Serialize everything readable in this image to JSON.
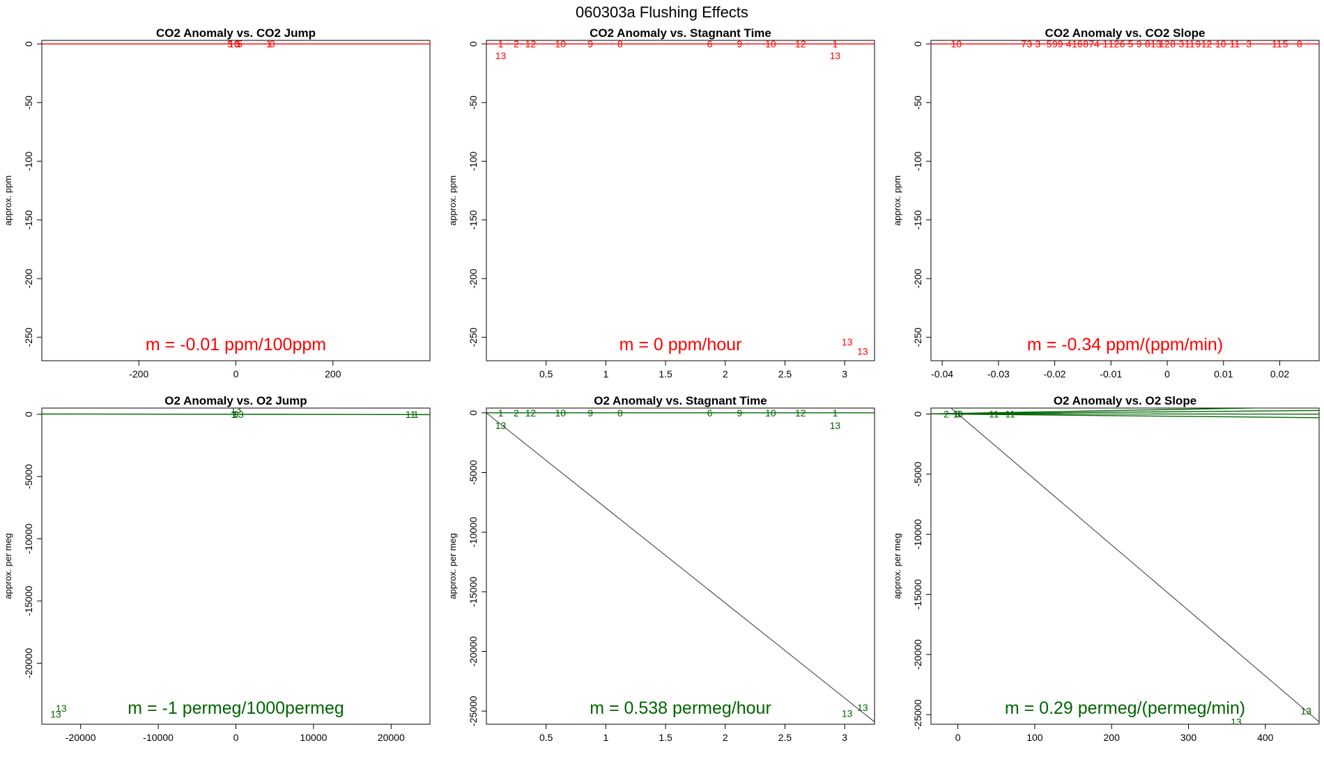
{
  "page_title": "060303a   Flushing Effects",
  "colors": {
    "co2": "#ff0000",
    "o2": "#006400",
    "axis": "#000000",
    "line": "#333333"
  },
  "chart_data": [
    {
      "type": "scatter",
      "title": "CO2 Anomaly vs. CO2 Jump",
      "ylabel": "approx. ppm",
      "xlim": [
        -400,
        400
      ],
      "ylim": [
        -270,
        3
      ],
      "xticks": [
        -200,
        0,
        200
      ],
      "yticks": [
        0,
        -50,
        -100,
        -150,
        -200,
        -250
      ],
      "color_key": "co2",
      "slope_label": "m = -0.01 ppm/100ppm",
      "points": [
        {
          "x": -12,
          "y": 0,
          "label": "5"
        },
        {
          "x": -4,
          "y": 0,
          "label": "10"
        },
        {
          "x": 4,
          "y": 0,
          "label": "5"
        },
        {
          "x": 8,
          "y": 0,
          "label": "5"
        },
        {
          "x": 68,
          "y": 0,
          "label": "1"
        },
        {
          "x": 75,
          "y": 0,
          "label": "0"
        }
      ],
      "lines": [
        {
          "x1": -400,
          "y1": 0,
          "x2": 400,
          "y2": 0,
          "style": "series"
        }
      ]
    },
    {
      "type": "scatter",
      "title": "CO2 Anomaly vs. Stagnant Time",
      "ylabel": "approx. ppm",
      "xlim": [
        0,
        3.25
      ],
      "ylim": [
        -270,
        3
      ],
      "xticks": [
        0.5,
        1.0,
        1.5,
        2.0,
        2.5,
        3.0
      ],
      "yticks": [
        0,
        -50,
        -100,
        -150,
        -200,
        -250
      ],
      "color_key": "co2",
      "slope_label": "m = 0 ppm/hour",
      "points": [
        {
          "x": 0.12,
          "y": 0,
          "label": "1"
        },
        {
          "x": 0.12,
          "y": -10,
          "label": "13"
        },
        {
          "x": 0.25,
          "y": 0,
          "label": "2"
        },
        {
          "x": 0.37,
          "y": 0,
          "label": "12"
        },
        {
          "x": 0.62,
          "y": 0,
          "label": "10"
        },
        {
          "x": 0.87,
          "y": 0,
          "label": "9"
        },
        {
          "x": 1.12,
          "y": 0,
          "label": "8"
        },
        {
          "x": 1.87,
          "y": 0,
          "label": "6"
        },
        {
          "x": 2.12,
          "y": 0,
          "label": "9"
        },
        {
          "x": 2.38,
          "y": 0,
          "label": "10"
        },
        {
          "x": 2.63,
          "y": 0,
          "label": "12"
        },
        {
          "x": 2.92,
          "y": 0,
          "label": "1"
        },
        {
          "x": 2.92,
          "y": -10,
          "label": "13"
        },
        {
          "x": 3.02,
          "y": -254,
          "label": "13"
        },
        {
          "x": 3.15,
          "y": -262,
          "label": "13"
        }
      ],
      "lines": [
        {
          "x1": 0,
          "y1": 0,
          "x2": 3.25,
          "y2": 0,
          "style": "series"
        }
      ]
    },
    {
      "type": "scatter",
      "title": "CO2 Anomaly vs. CO2 Slope",
      "ylabel": "approx. ppm",
      "xlim": [
        -0.042,
        0.027
      ],
      "ylim": [
        -270,
        3
      ],
      "xticks": [
        -0.04,
        -0.03,
        -0.02,
        -0.01,
        0.0,
        0.01,
        0.02
      ],
      "yticks": [
        0,
        -50,
        -100,
        -150,
        -200,
        -250
      ],
      "color_key": "co2",
      "slope_label": "m = -0.34 ppm/(ppm/min)",
      "points": [
        {
          "x": -0.0375,
          "y": 0,
          "label": "10"
        },
        {
          "x": -0.0255,
          "y": 0,
          "label": "7"
        },
        {
          "x": -0.0245,
          "y": 0,
          "label": "3"
        },
        {
          "x": -0.023,
          "y": 0,
          "label": "3"
        },
        {
          "x": -0.021,
          "y": 0,
          "label": "5"
        },
        {
          "x": -0.0195,
          "y": 0,
          "label": "99"
        },
        {
          "x": -0.0175,
          "y": 0,
          "label": "4"
        },
        {
          "x": -0.016,
          "y": 0,
          "label": "16"
        },
        {
          "x": -0.0145,
          "y": 0,
          "label": "8"
        },
        {
          "x": -0.013,
          "y": 0,
          "label": "74"
        },
        {
          "x": -0.011,
          "y": 0,
          "label": "1"
        },
        {
          "x": -0.0095,
          "y": 0,
          "label": "12"
        },
        {
          "x": -0.008,
          "y": 0,
          "label": "6"
        },
        {
          "x": -0.0065,
          "y": 0,
          "label": "5"
        },
        {
          "x": -0.005,
          "y": 0,
          "label": "9"
        },
        {
          "x": -0.0035,
          "y": 0,
          "label": "8"
        },
        {
          "x": -0.002,
          "y": 0,
          "label": "13"
        },
        {
          "x": -0.0005,
          "y": 0,
          "label": "12"
        },
        {
          "x": 0.001,
          "y": 0,
          "label": "8"
        },
        {
          "x": 0.0025,
          "y": 0,
          "label": "3"
        },
        {
          "x": 0.004,
          "y": 0,
          "label": "11"
        },
        {
          "x": 0.0055,
          "y": 0,
          "label": "9"
        },
        {
          "x": 0.007,
          "y": 0,
          "label": "12"
        },
        {
          "x": 0.0095,
          "y": 0,
          "label": "10"
        },
        {
          "x": 0.012,
          "y": 0,
          "label": "11"
        },
        {
          "x": 0.0145,
          "y": 0,
          "label": "3"
        },
        {
          "x": 0.0195,
          "y": 0,
          "label": "11"
        },
        {
          "x": 0.021,
          "y": 0,
          "label": "5"
        },
        {
          "x": 0.0235,
          "y": 0,
          "label": "8"
        }
      ],
      "lines": [
        {
          "x1": -0.042,
          "y1": 0,
          "x2": 0.027,
          "y2": 0,
          "style": "series"
        }
      ]
    },
    {
      "type": "scatter",
      "title": "O2 Anomaly vs. O2 Jump",
      "ylabel": "approx. per meg",
      "xlim": [
        -25000,
        25000
      ],
      "ylim": [
        -24900,
        500
      ],
      "xticks": [
        -20000,
        -10000,
        0,
        10000,
        20000
      ],
      "yticks": [
        0,
        -5000,
        -10000,
        -15000,
        -20000
      ],
      "color_key": "o2",
      "slope_label": "m = -1 permeg/1000permeg",
      "points": [
        {
          "x": -300,
          "y": 0,
          "label": "1"
        },
        {
          "x": 0,
          "y": 0,
          "label": "0"
        },
        {
          "x": 300,
          "y": 0,
          "label": "13"
        },
        {
          "x": 0,
          "y": 400,
          "label": "13"
        },
        {
          "x": 22500,
          "y": 0,
          "label": "11"
        },
        {
          "x": 23200,
          "y": 0,
          "label": "1"
        },
        {
          "x": -22500,
          "y": -23600,
          "label": "13"
        },
        {
          "x": -23200,
          "y": -24100,
          "label": "13"
        }
      ],
      "lines": [
        {
          "x1": -25000,
          "y1": 25,
          "x2": 25000,
          "y2": -25,
          "style": "series"
        }
      ]
    },
    {
      "type": "scatter",
      "title": "O2 Anomaly vs. Stagnant Time",
      "ylabel": "approx. per meg",
      "xlim": [
        0,
        3.25
      ],
      "ylim": [
        -26100,
        400
      ],
      "xticks": [
        0.5,
        1.0,
        1.5,
        2.0,
        2.5,
        3.0
      ],
      "yticks": [
        0,
        -5000,
        -10000,
        -15000,
        -20000,
        -25000
      ],
      "color_key": "o2",
      "slope_label": "m = 0.538 permeg/hour",
      "points": [
        {
          "x": 0.12,
          "y": 0,
          "label": "1"
        },
        {
          "x": 0.12,
          "y": -1050,
          "label": "13"
        },
        {
          "x": 0.25,
          "y": 0,
          "label": "2"
        },
        {
          "x": 0.37,
          "y": 0,
          "label": "12"
        },
        {
          "x": 0.62,
          "y": 0,
          "label": "10"
        },
        {
          "x": 0.87,
          "y": 0,
          "label": "9"
        },
        {
          "x": 1.12,
          "y": 0,
          "label": "8"
        },
        {
          "x": 1.87,
          "y": 0,
          "label": "6"
        },
        {
          "x": 2.12,
          "y": 0,
          "label": "9"
        },
        {
          "x": 2.38,
          "y": 0,
          "label": "10"
        },
        {
          "x": 2.63,
          "y": 0,
          "label": "12"
        },
        {
          "x": 2.92,
          "y": 0,
          "label": "1"
        },
        {
          "x": 2.92,
          "y": -1050,
          "label": "13"
        },
        {
          "x": 3.02,
          "y": -25200,
          "label": "13"
        },
        {
          "x": 3.15,
          "y": -24700,
          "label": "13"
        }
      ],
      "lines": [
        {
          "x1": 0,
          "y1": 0,
          "x2": 3.25,
          "y2": 0,
          "style": "series"
        },
        {
          "x1": 0,
          "y1": 0,
          "x2": 3.25,
          "y2": -25900,
          "style": "thin"
        }
      ]
    },
    {
      "type": "scatter",
      "title": "O2 Anomaly vs. O2 Slope",
      "ylabel": "approx. per meg",
      "xlim": [
        -35,
        470
      ],
      "ylim": [
        -25800,
        500
      ],
      "xticks": [
        0,
        100,
        200,
        300,
        400
      ],
      "yticks": [
        0,
        -5000,
        -10000,
        -15000,
        -20000,
        -25000
      ],
      "color_key": "o2",
      "slope_label": "m = 0.29 permeg/(permeg/min)",
      "points": [
        {
          "x": -15,
          "y": 0,
          "label": "2"
        },
        {
          "x": -3,
          "y": 0,
          "label": "1"
        },
        {
          "x": 0,
          "y": 0,
          "label": "0"
        },
        {
          "x": 3,
          "y": 0,
          "label": "0"
        },
        {
          "x": 47,
          "y": 0,
          "label": "11"
        },
        {
          "x": 68,
          "y": 0,
          "label": "11"
        },
        {
          "x": 453,
          "y": -24700,
          "label": "13"
        },
        {
          "x": 362,
          "y": -25600,
          "label": "13"
        }
      ],
      "lines": [
        {
          "x1": -35,
          "y1": 20,
          "x2": 470,
          "y2": 0,
          "style": "series"
        },
        {
          "x1": -35,
          "y1": 20,
          "x2": 470,
          "y2": 300,
          "style": "series"
        },
        {
          "x1": -35,
          "y1": 20,
          "x2": 470,
          "y2": 600,
          "style": "series"
        },
        {
          "x1": -35,
          "y1": 20,
          "x2": 470,
          "y2": -300,
          "style": "series"
        },
        {
          "x1": -20,
          "y1": 1100,
          "x2": 470,
          "y2": -25600,
          "style": "thin"
        }
      ]
    }
  ]
}
